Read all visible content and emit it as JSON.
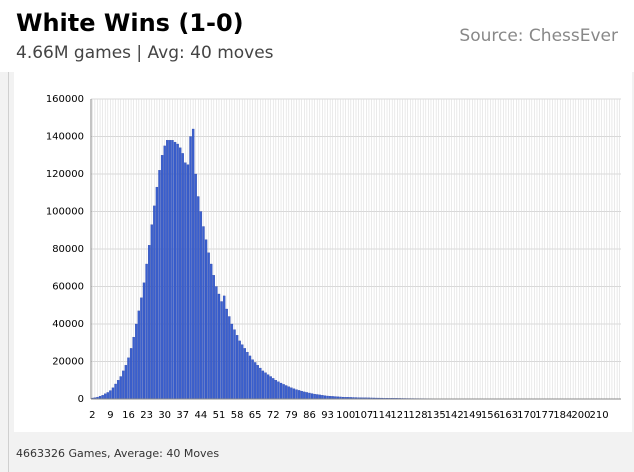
{
  "chart_data": {
    "type": "bar",
    "title": "White Wins (1-0)",
    "subtitle": "4.66M games | Avg: 40 moves",
    "source": "Source: ChessEver",
    "footer": "4663326 Games, Average: 40 Moves",
    "color": "#3a5fcd",
    "ylim": [
      0,
      160000
    ],
    "yticks": [
      0,
      20000,
      40000,
      60000,
      80000,
      100000,
      120000,
      140000,
      160000
    ],
    "grid": true,
    "categories": [
      "2",
      null,
      null,
      null,
      null,
      null,
      null,
      "9",
      null,
      null,
      null,
      null,
      null,
      null,
      "16",
      null,
      null,
      null,
      null,
      null,
      null,
      "23",
      null,
      null,
      null,
      null,
      null,
      null,
      "30",
      null,
      null,
      null,
      null,
      null,
      null,
      "37",
      null,
      null,
      null,
      null,
      null,
      null,
      "44",
      null,
      null,
      null,
      null,
      null,
      null,
      "51",
      null,
      null,
      null,
      null,
      null,
      null,
      "58",
      null,
      null,
      null,
      null,
      null,
      null,
      "65",
      null,
      null,
      null,
      null,
      null,
      null,
      "72",
      null,
      null,
      null,
      null,
      null,
      null,
      "79",
      null,
      null,
      null,
      null,
      null,
      null,
      "86",
      null,
      null,
      null,
      null,
      null,
      null,
      "93",
      null,
      null,
      null,
      null,
      null,
      null,
      "100",
      null,
      null,
      null,
      null,
      null,
      null,
      "107",
      null,
      null,
      null,
      null,
      null,
      null,
      "114",
      null,
      null,
      null,
      null,
      null,
      null,
      "121",
      null,
      null,
      null,
      null,
      null,
      null,
      "128",
      null,
      null,
      null,
      null,
      null,
      null,
      "135",
      null,
      null,
      null,
      null,
      null,
      null,
      "142",
      null,
      null,
      null,
      null,
      null,
      null,
      "149",
      null,
      null,
      null,
      null,
      null,
      null,
      "156",
      null,
      null,
      null,
      null,
      null,
      null,
      "163",
      null,
      null,
      null,
      null,
      null,
      null,
      "170",
      null,
      null,
      null,
      null,
      null,
      null,
      "177",
      null,
      null,
      null,
      null,
      null,
      null,
      "184",
      null,
      null,
      null,
      null,
      null,
      null,
      "200",
      null,
      null,
      null,
      null,
      null,
      null,
      "210",
      null,
      null,
      null,
      null,
      null,
      null,
      null,
      null
    ],
    "values": [
      500,
      700,
      1000,
      1500,
      2000,
      2800,
      3500,
      4500,
      6000,
      8000,
      10000,
      12000,
      15000,
      18000,
      22000,
      27000,
      33000,
      40000,
      47000,
      54000,
      62000,
      72000,
      82000,
      93000,
      103000,
      113000,
      122000,
      130000,
      135000,
      138000,
      138000,
      138000,
      137000,
      136000,
      134000,
      131000,
      126000,
      125000,
      140000,
      144000,
      120000,
      108000,
      100000,
      92000,
      85000,
      78000,
      72000,
      66000,
      60000,
      56000,
      52000,
      55000,
      48000,
      44000,
      40000,
      37000,
      34000,
      31000,
      29000,
      27000,
      25000,
      23000,
      21000,
      19500,
      18000,
      16500,
      15000,
      14000,
      13000,
      12000,
      11000,
      10000,
      9200,
      8500,
      7800,
      7200,
      6600,
      6000,
      5500,
      5000,
      4600,
      4200,
      3800,
      3500,
      3200,
      2900,
      2600,
      2400,
      2200,
      2000,
      1800,
      1600,
      1500,
      1400,
      1300,
      1200,
      1100,
      1000,
      950,
      900,
      860,
      820,
      780,
      740,
      700,
      670,
      640,
      610,
      580,
      550,
      520,
      500,
      480,
      460,
      440,
      420,
      400,
      380,
      360,
      340,
      320,
      300,
      290,
      280,
      270,
      260,
      250,
      240,
      230,
      220,
      210,
      200,
      190,
      180,
      170,
      160,
      150,
      140,
      130,
      120,
      110,
      100,
      95,
      90,
      85,
      80,
      75,
      70,
      65,
      60,
      55,
      50,
      48,
      46,
      44,
      42,
      40,
      38,
      36,
      34,
      32,
      30,
      28,
      26,
      24,
      22,
      20,
      18,
      16,
      14,
      12,
      11,
      10,
      9,
      8,
      7,
      6,
      5,
      5,
      4,
      4,
      3,
      3,
      3,
      2,
      2,
      2,
      2,
      1,
      1,
      1,
      1,
      1,
      1,
      1,
      1,
      1,
      1,
      1,
      1,
      1,
      1,
      1,
      1,
      1
    ]
  }
}
